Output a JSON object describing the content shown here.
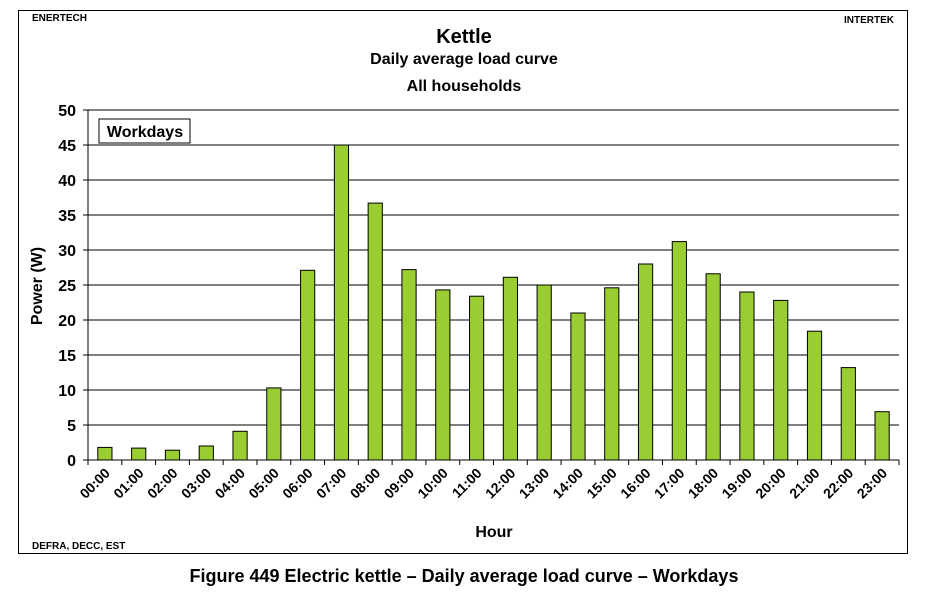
{
  "header": {
    "left_label": "ENERTECH",
    "right_label": "INTERTEK",
    "footer_left": "DEFRA, DECC, EST"
  },
  "chart_data": {
    "type": "bar",
    "title": "Kettle",
    "subtitle": "Daily average load curve",
    "subtitle2": "All households",
    "annotation": "Workdays",
    "xlabel": "Hour",
    "ylabel": "Power (W)",
    "ylim": [
      0,
      50
    ],
    "yticks": [
      0,
      5,
      10,
      15,
      20,
      25,
      30,
      35,
      40,
      45,
      50
    ],
    "grid": true,
    "categories": [
      "00:00",
      "01:00",
      "02:00",
      "03:00",
      "04:00",
      "05:00",
      "06:00",
      "07:00",
      "08:00",
      "09:00",
      "10:00",
      "11:00",
      "12:00",
      "13:00",
      "14:00",
      "15:00",
      "16:00",
      "17:00",
      "18:00",
      "19:00",
      "20:00",
      "21:00",
      "22:00",
      "23:00"
    ],
    "values": [
      1.8,
      1.7,
      1.4,
      2.0,
      4.1,
      10.3,
      27.1,
      45.0,
      36.7,
      27.2,
      24.3,
      23.4,
      26.1,
      25.0,
      21.0,
      24.6,
      28.0,
      31.2,
      26.6,
      24.0,
      22.8,
      18.4,
      13.2,
      6.9
    ],
    "colors": {
      "bar_fill": "#9ACD32",
      "bar_stroke": "#000000"
    }
  },
  "caption": "Figure 449 Electric kettle – Daily average load curve – Workdays"
}
